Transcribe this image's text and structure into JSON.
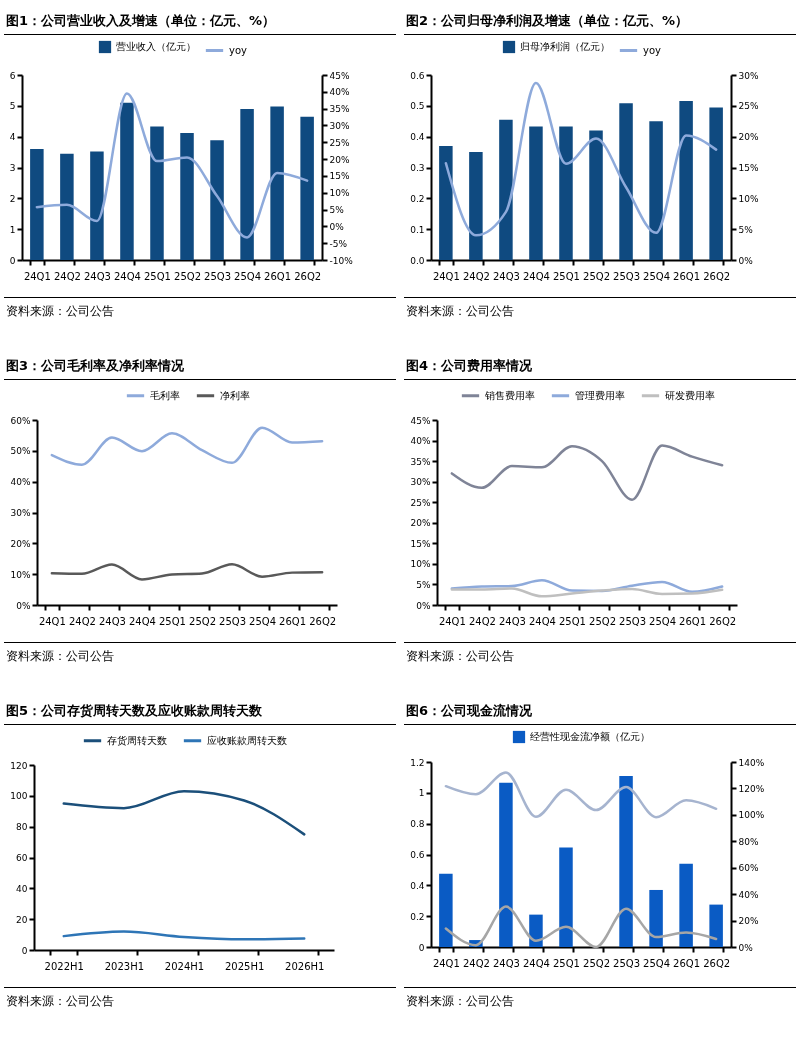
{
  "chart_data": [
    {
      "type": "bar",
      "title": "图1：公司营业收入及增速（单位：亿元、%）",
      "categories": [
        "24Q1",
        "24Q2",
        "24Q3",
        "24Q4",
        "25Q1",
        "25Q2",
        "25Q3",
        "25Q4",
        "26Q1",
        "26Q2"
      ],
      "series": [
        {
          "name": "营业收入（亿元）",
          "color": "#0f4a80",
          "values": [
            3.6,
            3.45,
            3.52,
            5.1,
            4.33,
            4.12,
            3.88,
            4.9,
            4.98,
            4.65
          ]
        },
        {
          "name": "yoy",
          "type": "line",
          "axis": "y2",
          "color": "#8eaadb",
          "values": [
            5.7,
            6.4,
            1.6,
            39.5,
            19.4,
            20.5,
            9.0,
            -3.3,
            15.9,
            13.6
          ]
        }
      ],
      "ylim": [
        0,
        6
      ],
      "yticks": [
        0,
        1,
        2,
        3,
        4,
        5,
        6
      ],
      "y2lim": [
        -10,
        45
      ],
      "y2ticks": [
        {
          "value": -10,
          "label": "-10%"
        },
        {
          "value": -5,
          "label": "-5%"
        },
        {
          "value": 0,
          "label": "0%"
        },
        {
          "value": 5,
          "label": "5%"
        },
        {
          "value": 10,
          "label": "10%"
        },
        {
          "value": 15,
          "label": "15%"
        },
        {
          "value": 20,
          "label": "20%"
        },
        {
          "value": 25,
          "label": "25%"
        },
        {
          "value": 30,
          "label": "30%"
        },
        {
          "value": 35,
          "label": "35%"
        },
        {
          "value": 40,
          "label": "40%"
        },
        {
          "value": 45,
          "label": "45%"
        }
      ],
      "grid": false,
      "legend": "top",
      "annotations": [
        "资料来源：公司公告"
      ]
    },
    {
      "type": "bar",
      "title": "图2：公司归母净利润及增速（单位：亿元、%）",
      "categories": [
        "24Q1",
        "24Q2",
        "24Q3",
        "24Q4",
        "25Q1",
        "25Q2",
        "25Q3",
        "25Q4",
        "26Q1",
        "26Q2"
      ],
      "series": [
        {
          "name": "归母净利润（亿元）",
          "color": "#0f4a80",
          "values": [
            0.37,
            0.35,
            0.455,
            0.433,
            0.433,
            0.42,
            0.508,
            0.45,
            0.516,
            0.495
          ]
        },
        {
          "name": "yoy",
          "type": "line",
          "axis": "y2",
          "color": "#8eaadb",
          "values": [
            15.7,
            4.0,
            7.8,
            28.7,
            15.6,
            19.7,
            11.8,
            4.4,
            20.2,
            17.9
          ]
        }
      ],
      "ylim": [
        0,
        0.6
      ],
      "yticks": [
        {
          "value": 0,
          "label": "0.0"
        },
        0.1,
        0.2,
        0.3,
        0.4,
        0.5,
        0.6
      ],
      "y2lim": [
        0,
        30
      ],
      "y2ticks": [
        {
          "value": 0,
          "label": "0%"
        },
        {
          "value": 5,
          "label": "5%"
        },
        {
          "value": 10,
          "label": "10%"
        },
        {
          "value": 15,
          "label": "15%"
        },
        {
          "value": 20,
          "label": "20%"
        },
        {
          "value": 25,
          "label": "25%"
        },
        {
          "value": 30,
          "label": "30%"
        }
      ],
      "grid": false,
      "legend": "top",
      "annotations": [
        "资料来源：公司公告"
      ]
    },
    {
      "type": "line",
      "title": "图3：公司毛利率及净利率情况",
      "categories": [
        "24Q1",
        "24Q2",
        "24Q3",
        "24Q4",
        "25Q1",
        "25Q2",
        "25Q3",
        "25Q4",
        "26Q1",
        "26Q2"
      ],
      "series": [
        {
          "name": "毛利率",
          "color": "#8eaadb",
          "values": [
            48.6,
            45.5,
            54.3,
            49.9,
            55.7,
            50.2,
            46.1,
            57.5,
            52.7,
            53.1
          ]
        },
        {
          "name": "净利率",
          "color": "#595959",
          "values": [
            10.3,
            10.1,
            13.1,
            8.3,
            9.9,
            10.2,
            13.2,
            9.2,
            10.5,
            10.6
          ]
        }
      ],
      "ylim": [
        0,
        60
      ],
      "yticks": [
        {
          "value": 0,
          "label": "0%"
        },
        {
          "value": 10,
          "label": "10%"
        },
        {
          "value": 20,
          "label": "20%"
        },
        {
          "value": 30,
          "label": "30%"
        },
        {
          "value": 40,
          "label": "40%"
        },
        {
          "value": 50,
          "label": "50%"
        },
        {
          "value": 60,
          "label": "60%"
        }
      ],
      "grid": false,
      "legend": "top",
      "annotations": [
        "资料来源：公司公告"
      ]
    },
    {
      "type": "line",
      "title": "图4：公司费用率情况",
      "categories": [
        "24Q1",
        "24Q2",
        "24Q3",
        "24Q4",
        "25Q1",
        "25Q2",
        "25Q3",
        "25Q4",
        "26Q1",
        "26Q2"
      ],
      "series": [
        {
          "name": "销售费用率",
          "color": "#7f8497",
          "values": [
            32.0,
            28.5,
            33.8,
            33.5,
            38.6,
            35.0,
            25.6,
            38.8,
            36.1,
            34.0
          ]
        },
        {
          "name": "管理费用率",
          "color": "#8eaadb",
          "values": [
            4.0,
            4.5,
            4.6,
            6.0,
            3.5,
            3.4,
            4.7,
            5.6,
            3.2,
            4.5
          ]
        },
        {
          "name": "研发费用率",
          "color": "#bfbfbf",
          "values": [
            3.8,
            3.8,
            4.0,
            2.1,
            2.8,
            3.5,
            3.9,
            2.7,
            2.8,
            3.7
          ]
        }
      ],
      "ylim": [
        0,
        45
      ],
      "yticks": [
        {
          "value": 0,
          "label": "0%"
        },
        {
          "value": 5,
          "label": "5%"
        },
        {
          "value": 10,
          "label": "10%"
        },
        {
          "value": 15,
          "label": "15%"
        },
        {
          "value": 20,
          "label": "20%"
        },
        {
          "value": 25,
          "label": "25%"
        },
        {
          "value": 30,
          "label": "30%"
        },
        {
          "value": 35,
          "label": "35%"
        },
        {
          "value": 40,
          "label": "40%"
        },
        {
          "value": 45,
          "label": "45%"
        }
      ],
      "grid": false,
      "legend": "top",
      "annotations": [
        "资料来源：公司公告"
      ]
    },
    {
      "type": "line",
      "title": "图5：公司存货周转天数及应收账款周转天数",
      "categories": [
        "2022H1",
        "2023H1",
        "2024H1",
        "2025H1",
        "2026H1"
      ],
      "series": [
        {
          "name": "存货周转天数",
          "color": "#1b4f7a",
          "values": [
            95,
            92,
            103,
            97,
            75
          ]
        },
        {
          "name": "应收账款周转天数",
          "color": "#2e75b6",
          "values": [
            9,
            12,
            8.5,
            7,
            7.5
          ]
        }
      ],
      "ylim": [
        0,
        120
      ],
      "yticks": [
        0,
        20,
        40,
        60,
        80,
        100,
        120
      ],
      "grid": false,
      "legend": "top",
      "annotations": [
        "资料来源：公司公告"
      ]
    },
    {
      "type": "bar",
      "title": "图6：公司现金流情况",
      "categories": [
        "24Q1",
        "24Q2",
        "24Q3",
        "24Q4",
        "25Q1",
        "25Q2",
        "25Q3",
        "25Q4",
        "26Q1",
        "26Q2"
      ],
      "series": [
        {
          "name": "经营性现金流净额（亿元）",
          "color": "#0a5bc4",
          "values": [
            0.475,
            0.045,
            1.065,
            0.21,
            0.645,
            0,
            1.11,
            0.37,
            0.54,
            0.275
          ]
        },
        {
          "type": "line",
          "axis": "y2",
          "color": "#a6b4cf",
          "values": [
            121.7,
            115.6,
            132,
            98.5,
            119,
            103.6,
            121,
            98.2,
            111,
            104.6
          ]
        },
        {
          "type": "line",
          "axis": "y2",
          "color": "#a6a6a6",
          "values": [
            14,
            1.4,
            30.6,
            4.7,
            15.3,
            0,
            29,
            7.5,
            11,
            6.1
          ]
        }
      ],
      "ylim": [
        0,
        1.2
      ],
      "yticks": [
        0,
        0.2,
        0.4,
        0.6,
        0.8,
        1,
        1.2
      ],
      "y2lim": [
        0,
        140
      ],
      "y2ticks": [
        {
          "value": 0,
          "label": "0%"
        },
        {
          "value": 20,
          "label": "20%"
        },
        {
          "value": 40,
          "label": "40%"
        },
        {
          "value": 60,
          "label": "60%"
        },
        {
          "value": 80,
          "label": "80%"
        },
        {
          "value": 100,
          "label": "100%"
        },
        {
          "value": 120,
          "label": "120%"
        },
        {
          "value": 140,
          "label": "140%"
        }
      ],
      "grid": false,
      "legend": "top",
      "annotations": [
        "资料来源：公司公告"
      ]
    }
  ]
}
